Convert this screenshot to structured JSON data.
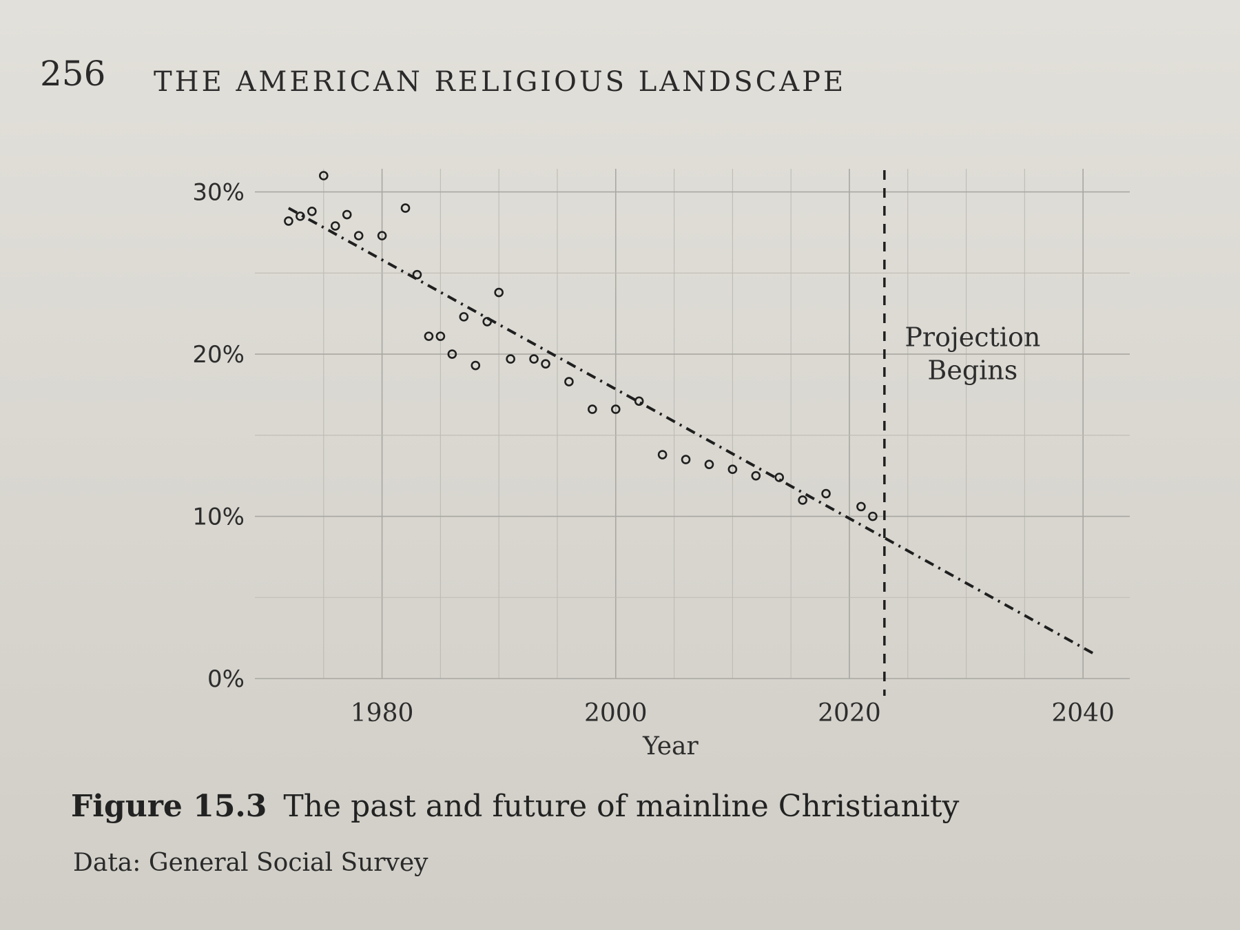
{
  "header": {
    "page_number": "256",
    "running_head": "THE AMERICAN RELIGIOUS LANDSCAPE"
  },
  "caption": {
    "figure_label": "Figure 15.3",
    "figure_title": "The past and future of mainline Christianity",
    "source": "Data: General Social Survey"
  },
  "chart_data": {
    "type": "scatter",
    "title": "",
    "xlabel": "Year",
    "ylabel": "",
    "xlim": [
      1970,
      2044
    ],
    "ylim": [
      0,
      31
    ],
    "x_ticks": [
      1980,
      2000,
      2020,
      2040
    ],
    "x_tick_labels": [
      "1980",
      "2000",
      "2020",
      "2040"
    ],
    "y_ticks": [
      0,
      10,
      20,
      30
    ],
    "y_tick_labels": [
      "0%",
      "10%",
      "20%",
      "30%"
    ],
    "grid": true,
    "series": [
      {
        "kind": "points",
        "x": [
          1972,
          1973,
          1974,
          1975,
          1976,
          1977,
          1978,
          1980,
          1982,
          1983,
          1984,
          1985,
          1986,
          1987,
          1988,
          1989,
          1990,
          1991,
          1993,
          1994,
          1996,
          1998,
          2000,
          2002,
          2004,
          2006,
          2008,
          2010,
          2012,
          2014,
          2016,
          2018,
          2021,
          2022
        ],
        "y": [
          28.2,
          28.5,
          28.8,
          31.0,
          27.9,
          28.6,
          27.3,
          27.3,
          29.0,
          24.9,
          21.1,
          21.1,
          20.0,
          22.3,
          19.3,
          22.0,
          23.8,
          19.7,
          19.7,
          19.4,
          18.3,
          16.6,
          16.6,
          17.1,
          13.8,
          13.5,
          13.2,
          12.9,
          12.5,
          12.4,
          11.0,
          11.4,
          10.6,
          10.0
        ]
      },
      {
        "kind": "trend_line",
        "style": "dash-dot",
        "x": [
          1972,
          2041
        ],
        "y": [
          29.0,
          1.5
        ]
      },
      {
        "kind": "projection_marker",
        "style": "dashed",
        "x": 2023
      }
    ],
    "annotations": [
      {
        "text_lines": [
          "Projection",
          "Begins"
        ]
      }
    ]
  }
}
